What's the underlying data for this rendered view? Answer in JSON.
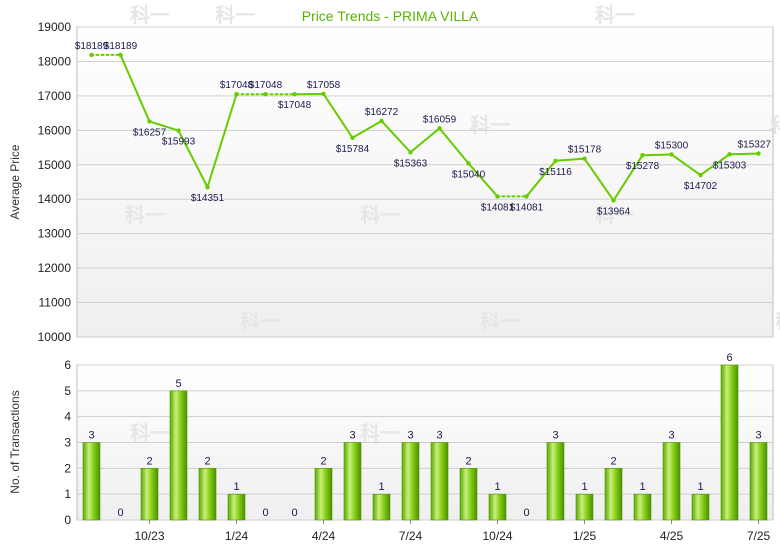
{
  "chart_data": [
    {
      "type": "line",
      "title": "Price Trends - PRIMA VILLA",
      "ylabel": "Average Price",
      "ylim": [
        10000,
        19000
      ],
      "yticks": [
        10000,
        11000,
        12000,
        13000,
        14000,
        15000,
        16000,
        17000,
        18000,
        19000
      ],
      "grid": true,
      "color": "#66cc00",
      "x_index": [
        0,
        1,
        2,
        3,
        4,
        5,
        6,
        7,
        8,
        9,
        10,
        11,
        12,
        13,
        14,
        15,
        16,
        17,
        18,
        19,
        20,
        21,
        22,
        23
      ],
      "values": [
        18189,
        18189,
        16257,
        15993,
        14351,
        17048,
        17048,
        17048,
        17058,
        15784,
        16272,
        15363,
        16059,
        15040,
        14081,
        14081,
        15116,
        15178,
        13964,
        15278,
        15300,
        14702,
        15303,
        15327
      ],
      "labels": [
        "$18189",
        "$18189",
        "$16257",
        "$15993",
        "$14351",
        "$17048",
        "$17048",
        "$17048",
        "$17058",
        "$15784",
        "$16272",
        "$15363",
        "$16059",
        "$15040",
        "$14081",
        "$14081",
        "$15116",
        "$15178",
        "$13964",
        "$15278",
        "$15300",
        "$14702",
        "$15303",
        "$15327"
      ],
      "no_transaction_months": [
        1,
        6,
        7,
        15
      ]
    },
    {
      "type": "bar",
      "ylabel": "No. of Transactions",
      "ylim": [
        0,
        6
      ],
      "yticks": [
        0,
        1,
        2,
        3,
        4,
        5,
        6
      ],
      "grid": true,
      "x_tick_labels": [
        {
          "index": 2,
          "label": "10/23"
        },
        {
          "index": 5,
          "label": "1/24"
        },
        {
          "index": 8,
          "label": "4/24"
        },
        {
          "index": 11,
          "label": "7/24"
        },
        {
          "index": 14,
          "label": "10/24"
        },
        {
          "index": 17,
          "label": "1/25"
        },
        {
          "index": 20,
          "label": "4/25"
        },
        {
          "index": 23,
          "label": "7/25"
        }
      ],
      "values": [
        3,
        0,
        2,
        5,
        2,
        1,
        0,
        0,
        2,
        3,
        1,
        3,
        3,
        2,
        1,
        0,
        3,
        1,
        2,
        1,
        3,
        1,
        6,
        3
      ]
    }
  ],
  "watermark": "科一",
  "colors": {
    "line": "#66cc00",
    "bar_light": "#c8ec7c",
    "bar_dark": "#4f9a00",
    "title": "#58b300",
    "grid": "#cccccc",
    "plot_bg_top": "#ffffff",
    "plot_bg_bottom": "#f0f0f0"
  }
}
